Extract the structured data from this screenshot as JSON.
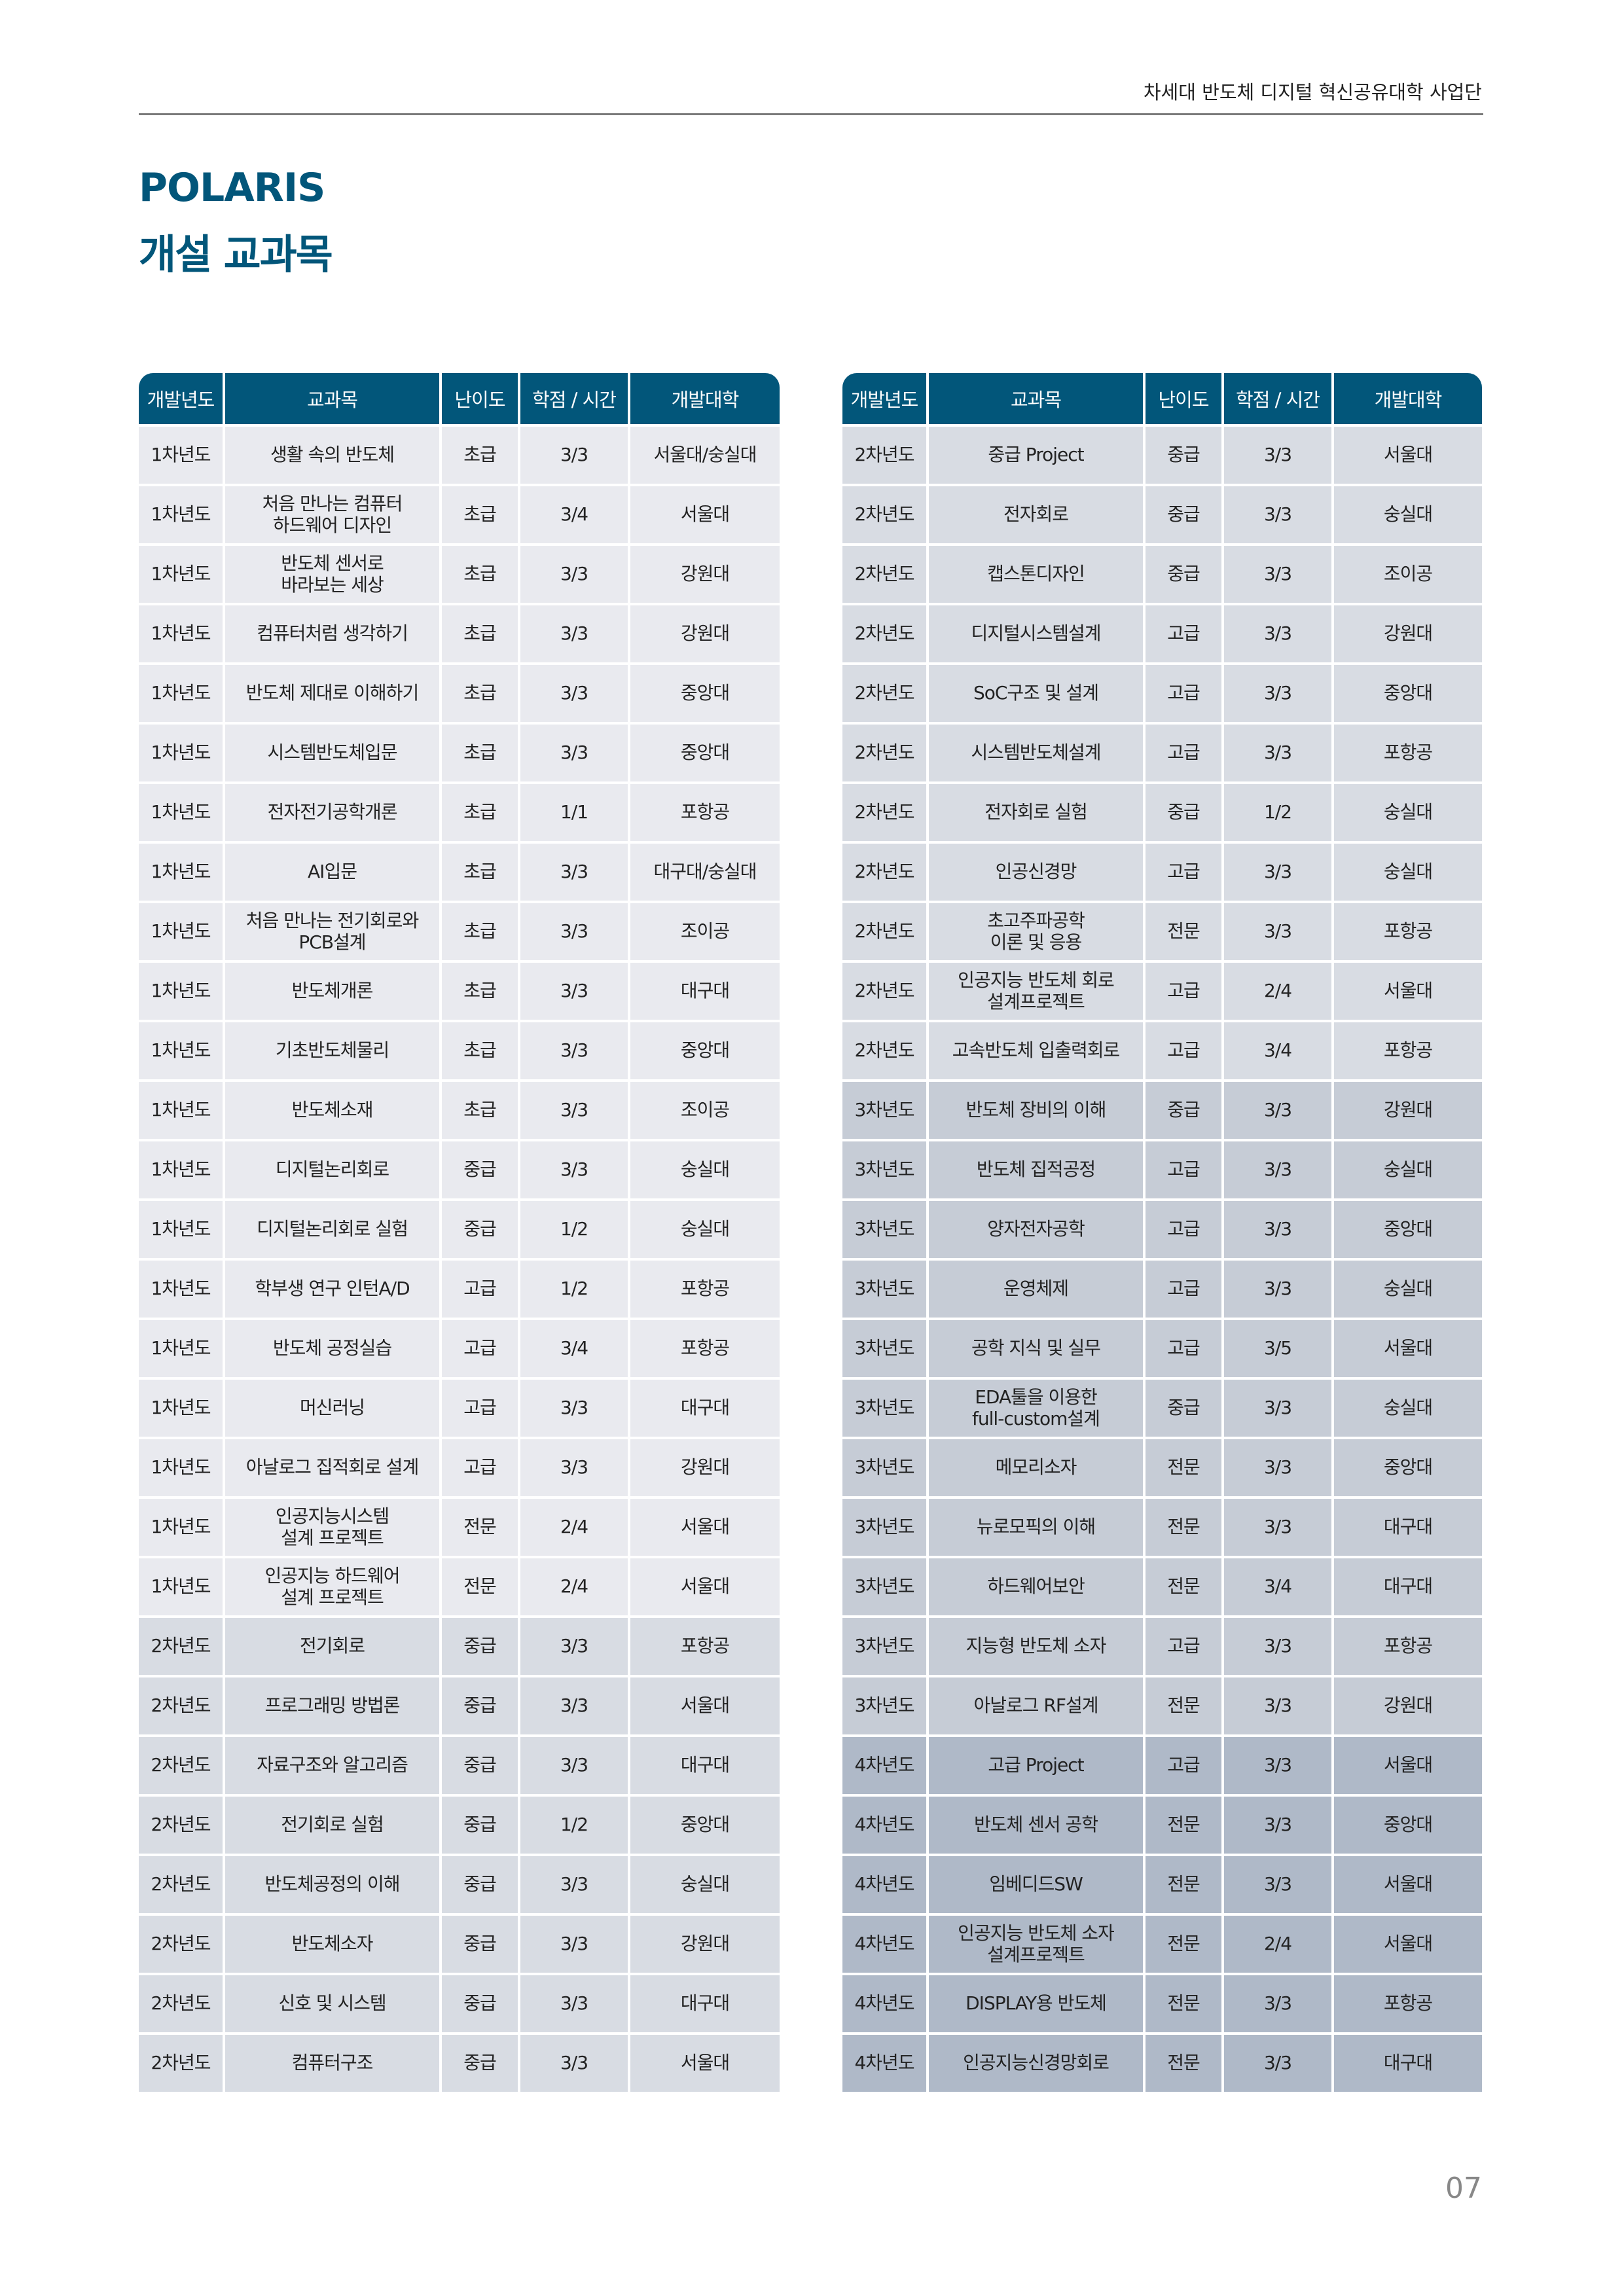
{
  "header": {
    "organization": "차세대 반도체 디지털 혁신공유대학 사업단"
  },
  "title": {
    "line1": "POLARIS",
    "line2": "개설 교과목"
  },
  "colors": {
    "accent": "#02567a",
    "year1": "#e9eaef",
    "year2": "#d8dce3",
    "year3": "#c6ccd6",
    "year4": "#afb9c8"
  },
  "columns": [
    "개발년도",
    "교과목",
    "난이도",
    "학점 / 시간",
    "개발대학"
  ],
  "left_table": [
    [
      "1차년도",
      "생활 속의 반도체",
      "초급",
      "3/3",
      "서울대/숭실대"
    ],
    [
      "1차년도",
      "처음 만나는 컴퓨터\n하드웨어 디자인",
      "초급",
      "3/4",
      "서울대"
    ],
    [
      "1차년도",
      "반도체 센서로\n바라보는 세상",
      "초급",
      "3/3",
      "강원대"
    ],
    [
      "1차년도",
      "컴퓨터처럼 생각하기",
      "초급",
      "3/3",
      "강원대"
    ],
    [
      "1차년도",
      "반도체 제대로 이해하기",
      "초급",
      "3/3",
      "중앙대"
    ],
    [
      "1차년도",
      "시스템반도체입문",
      "초급",
      "3/3",
      "중앙대"
    ],
    [
      "1차년도",
      "전자전기공학개론",
      "초급",
      "1/1",
      "포항공"
    ],
    [
      "1차년도",
      "AI입문",
      "초급",
      "3/3",
      "대구대/숭실대"
    ],
    [
      "1차년도",
      "처음 만나는 전기회로와\nPCB설계",
      "초급",
      "3/3",
      "조이공"
    ],
    [
      "1차년도",
      "반도체개론",
      "초급",
      "3/3",
      "대구대"
    ],
    [
      "1차년도",
      "기초반도체물리",
      "초급",
      "3/3",
      "중앙대"
    ],
    [
      "1차년도",
      "반도체소재",
      "초급",
      "3/3",
      "조이공"
    ],
    [
      "1차년도",
      "디지털논리회로",
      "중급",
      "3/3",
      "숭실대"
    ],
    [
      "1차년도",
      "디지털논리회로 실험",
      "중급",
      "1/2",
      "숭실대"
    ],
    [
      "1차년도",
      "학부생 연구 인턴A/D",
      "고급",
      "1/2",
      "포항공"
    ],
    [
      "1차년도",
      "반도체 공정실습",
      "고급",
      "3/4",
      "포항공"
    ],
    [
      "1차년도",
      "머신러닝",
      "고급",
      "3/3",
      "대구대"
    ],
    [
      "1차년도",
      "아날로그 집적회로 설계",
      "고급",
      "3/3",
      "강원대"
    ],
    [
      "1차년도",
      "인공지능시스템\n설계 프로젝트",
      "전문",
      "2/4",
      "서울대"
    ],
    [
      "1차년도",
      "인공지능 하드웨어\n설계 프로젝트",
      "전문",
      "2/4",
      "서울대"
    ],
    [
      "2차년도",
      "전기회로",
      "중급",
      "3/3",
      "포항공"
    ],
    [
      "2차년도",
      "프로그래밍 방법론",
      "중급",
      "3/3",
      "서울대"
    ],
    [
      "2차년도",
      "자료구조와 알고리즘",
      "중급",
      "3/3",
      "대구대"
    ],
    [
      "2차년도",
      "전기회로 실험",
      "중급",
      "1/2",
      "중앙대"
    ],
    [
      "2차년도",
      "반도체공정의 이해",
      "중급",
      "3/3",
      "숭실대"
    ],
    [
      "2차년도",
      "반도체소자",
      "중급",
      "3/3",
      "강원대"
    ],
    [
      "2차년도",
      "신호 및 시스템",
      "중급",
      "3/3",
      "대구대"
    ],
    [
      "2차년도",
      "컴퓨터구조",
      "중급",
      "3/3",
      "서울대"
    ]
  ],
  "right_table": [
    [
      "2차년도",
      "중급 Project",
      "중급",
      "3/3",
      "서울대"
    ],
    [
      "2차년도",
      "전자회로",
      "중급",
      "3/3",
      "숭실대"
    ],
    [
      "2차년도",
      "캡스톤디자인",
      "중급",
      "3/3",
      "조이공"
    ],
    [
      "2차년도",
      "디지털시스템설계",
      "고급",
      "3/3",
      "강원대"
    ],
    [
      "2차년도",
      "SoC구조 및 설계",
      "고급",
      "3/3",
      "중앙대"
    ],
    [
      "2차년도",
      "시스템반도체설계",
      "고급",
      "3/3",
      "포항공"
    ],
    [
      "2차년도",
      "전자회로 실험",
      "중급",
      "1/2",
      "숭실대"
    ],
    [
      "2차년도",
      "인공신경망",
      "고급",
      "3/3",
      "숭실대"
    ],
    [
      "2차년도",
      "초고주파공학\n이론 및 응용",
      "전문",
      "3/3",
      "포항공"
    ],
    [
      "2차년도",
      "인공지능 반도체 회로\n설계프로젝트",
      "고급",
      "2/4",
      "서울대"
    ],
    [
      "2차년도",
      "고속반도체 입출력회로",
      "고급",
      "3/4",
      "포항공"
    ],
    [
      "3차년도",
      "반도체 장비의 이해",
      "중급",
      "3/3",
      "강원대"
    ],
    [
      "3차년도",
      "반도체 집적공정",
      "고급",
      "3/3",
      "숭실대"
    ],
    [
      "3차년도",
      "양자전자공학",
      "고급",
      "3/3",
      "중앙대"
    ],
    [
      "3차년도",
      "운영체제",
      "고급",
      "3/3",
      "숭실대"
    ],
    [
      "3차년도",
      "공학 지식 및 실무",
      "고급",
      "3/5",
      "서울대"
    ],
    [
      "3차년도",
      "EDA툴을 이용한\nfull-custom설계",
      "중급",
      "3/3",
      "숭실대"
    ],
    [
      "3차년도",
      "메모리소자",
      "전문",
      "3/3",
      "중앙대"
    ],
    [
      "3차년도",
      "뉴로모픽의 이해",
      "전문",
      "3/3",
      "대구대"
    ],
    [
      "3차년도",
      "하드웨어보안",
      "전문",
      "3/4",
      "대구대"
    ],
    [
      "3차년도",
      "지능형 반도체 소자",
      "고급",
      "3/3",
      "포항공"
    ],
    [
      "3차년도",
      "아날로그 RF설계",
      "전문",
      "3/3",
      "강원대"
    ],
    [
      "4차년도",
      "고급 Project",
      "고급",
      "3/3",
      "서울대"
    ],
    [
      "4차년도",
      "반도체 센서 공학",
      "전문",
      "3/3",
      "중앙대"
    ],
    [
      "4차년도",
      "임베디드SW",
      "전문",
      "3/3",
      "서울대"
    ],
    [
      "4차년도",
      "인공지능 반도체 소자\n설계프로젝트",
      "전문",
      "2/4",
      "서울대"
    ],
    [
      "4차년도",
      "DISPLAY용 반도체",
      "전문",
      "3/3",
      "포항공"
    ],
    [
      "4차년도",
      "인공지능신경망회로",
      "전문",
      "3/3",
      "대구대"
    ]
  ],
  "page_number": "07"
}
